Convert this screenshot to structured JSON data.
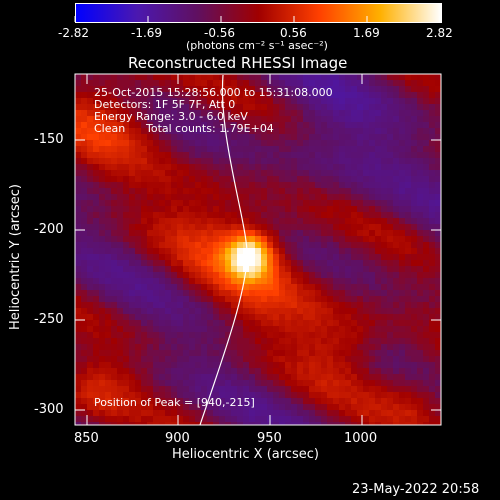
{
  "colorbar": {
    "tick_labels": [
      "-2.82",
      "-1.69",
      "-0.56",
      "0.56",
      "1.69",
      "2.82"
    ],
    "unit_label": "(photons cm⁻² s⁻¹ asec⁻²)",
    "colors": [
      "#0000ff",
      "#4b18b0",
      "#601060",
      "#a00000",
      "#ff4000",
      "#ffb000",
      "#ffffff"
    ]
  },
  "title": "Reconstructed RHESSI Image",
  "info": {
    "line1": "25-Oct-2015 15:28:56.000 to 15:31:08.000",
    "line2": "Detectors: 1F 5F 7F, Att 0",
    "line3": "Energy Range: 3.0 - 6.0 keV",
    "line4_a": "Clean",
    "line4_b": "Total counts: 1.79E+04",
    "peak": "Position of Peak = [940,-215]"
  },
  "axes": {
    "xlabel": "Heliocentric X (arcsec)",
    "ylabel": "Heliocentric Y (arcsec)",
    "xticks": [
      "850",
      "900",
      "950",
      "1000"
    ],
    "yticks": [
      "-150",
      "-200",
      "-250",
      "-300"
    ],
    "xlim": [
      843,
      1035
    ],
    "ylim": [
      -304,
      -124
    ]
  },
  "footer": {
    "timestamp": "23-May-2022 20:58"
  }
}
